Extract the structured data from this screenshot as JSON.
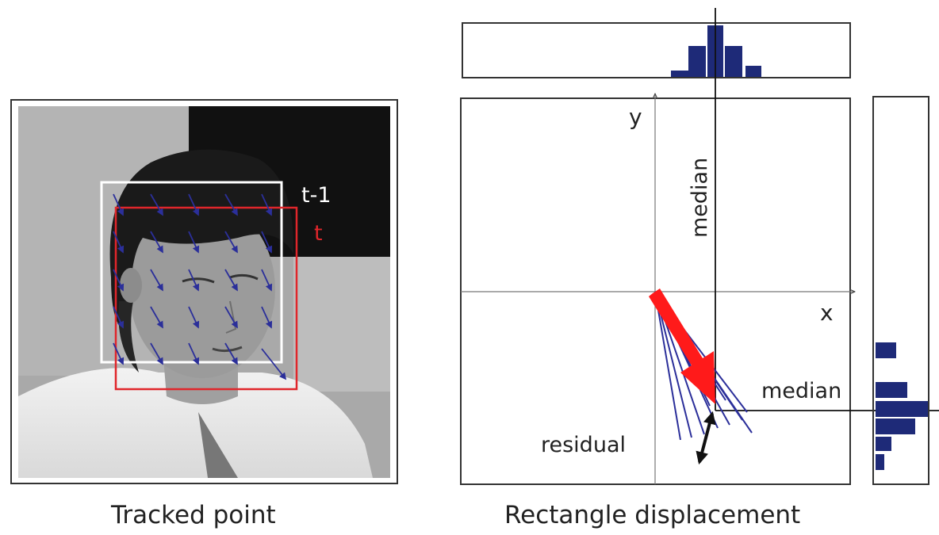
{
  "left_panel": {
    "caption": "Tracked point",
    "box_labels": {
      "previous": "t-1",
      "current": "t"
    },
    "box_colors": {
      "previous": "#ffffff",
      "current": "#e0262b"
    },
    "vector_color": "#2b2f9a",
    "image": "grayscale-face-photo"
  },
  "right_panel": {
    "caption": "Rectangle displacement",
    "axis_x_label": "x",
    "axis_y_label": "y",
    "median_vertical_label": "median",
    "median_horizontal_label": "median",
    "residual_label": "residual",
    "colors": {
      "vectors": "#2b2f9a",
      "median_arrow": "#ff1a1a",
      "residual_arrow": "#111111",
      "histogram_bars": "#1e2a78"
    }
  }
}
